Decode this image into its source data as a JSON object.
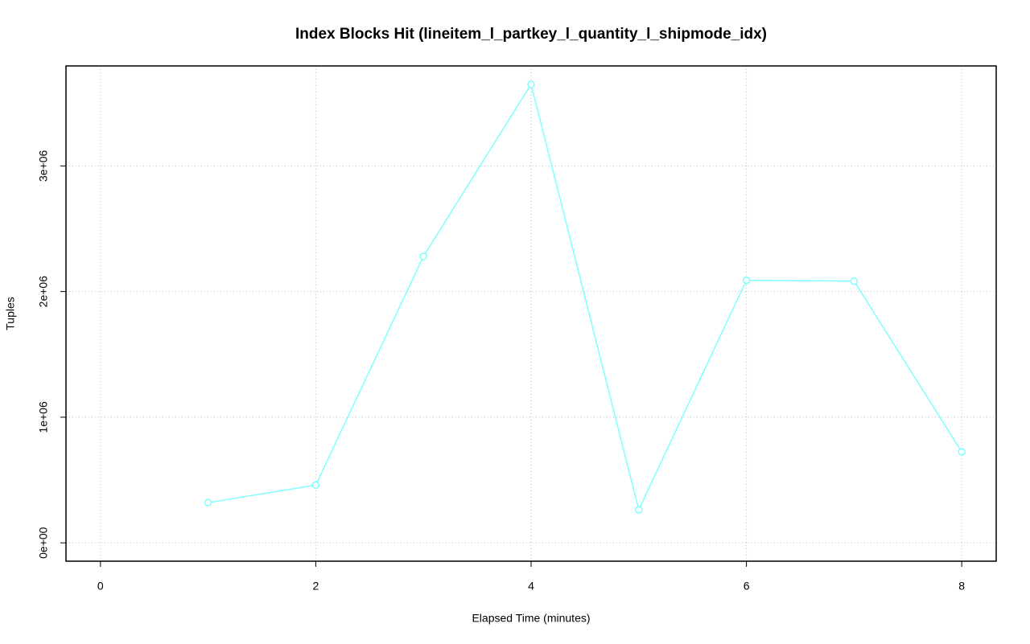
{
  "chart_data": {
    "type": "line",
    "title": "Index Blocks Hit (lineitem_l_partkey_l_quantity_l_shipmode_idx)",
    "x_label": "Elapsed Time (minutes)",
    "y_label": "Tuples",
    "x": [
      1,
      2,
      3,
      4,
      5,
      6,
      7,
      8
    ],
    "series": [
      {
        "color": "#7fffff",
        "values": [
          320000,
          460000,
          2280000,
          3650000,
          263000,
          2090000,
          2083000,
          724000
        ]
      }
    ],
    "xlim": [
      -0.32,
      8.32
    ],
    "xticks": [
      0,
      2,
      4,
      6,
      8
    ],
    "ylim": [
      -146000,
      3796000
    ],
    "yticks": [
      {
        "value": 0,
        "label": "0e+00"
      },
      {
        "value": 1000000,
        "label": "1e+06"
      },
      {
        "value": 2000000,
        "label": "2e+06"
      },
      {
        "value": 3000000,
        "label": "3e+06"
      }
    ],
    "grid": true
  }
}
